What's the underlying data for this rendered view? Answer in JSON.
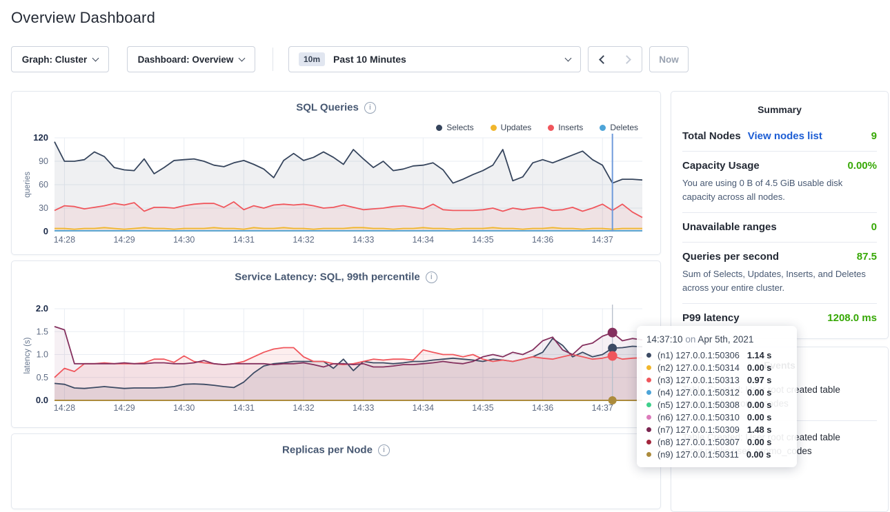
{
  "page": {
    "title": "Overview Dashboard"
  },
  "toolbar": {
    "graph_selector": "Graph: Cluster",
    "dashboard_selector": "Dashboard: Overview",
    "time_window_badge": "10m",
    "time_window_label": "Past 10 Minutes",
    "now_button": "Now"
  },
  "colors": {
    "accent_green": "#37a806",
    "link_blue": "#1c5dd4",
    "hover_line_blue": "#6f9bdb",
    "text_navy": "#242a35"
  },
  "summary": {
    "title": "Summary",
    "rows": [
      {
        "label": "Total Nodes",
        "link": "View nodes list",
        "value": "9"
      },
      {
        "label": "Capacity Usage",
        "value": "0.00%",
        "subtext": "You are using 0 B of 4.5 GiB usable disk capacity across all nodes."
      },
      {
        "label": "Unavailable ranges",
        "value": "0"
      },
      {
        "label": "Queries per second",
        "value": "87.5",
        "subtext": "Sum of Selects, Updates, Inserts, and Deletes across your entire cluster."
      },
      {
        "label": "P99 latency",
        "value": "1208.0 ms"
      }
    ]
  },
  "events": {
    "title": "Events",
    "items": [
      {
        "line1": "Table Created: User root created table",
        "line2": "movr.public.promo_codes"
      },
      {
        "line1": "Table Created: User root created table",
        "line2": "movr.public.user_promo_codes"
      }
    ]
  },
  "tooltip": {
    "time": "14:37:10",
    "on_word": "on",
    "date": "Apr 5th, 2021",
    "rows": [
      {
        "color": "#3c4a63",
        "label": "(n1) 127.0.0.1:50306",
        "value": "1.14 s"
      },
      {
        "color": "#f1b62c",
        "label": "(n2) 127.0.0.1:50314",
        "value": "0.00 s"
      },
      {
        "color": "#f0565c",
        "label": "(n3) 127.0.0.1:50313",
        "value": "0.97 s"
      },
      {
        "color": "#4da4d8",
        "label": "(n4) 127.0.0.1:50312",
        "value": "0.00 s"
      },
      {
        "color": "#3fd08c",
        "label": "(n5) 127.0.0.1:50308",
        "value": "0.00 s"
      },
      {
        "color": "#dc7bbb",
        "label": "(n6) 127.0.0.1:50310",
        "value": "0.00 s"
      },
      {
        "color": "#7a2550",
        "label": "(n7) 127.0.0.1:50309",
        "value": "1.48 s"
      },
      {
        "color": "#a3263c",
        "label": "(n8) 127.0.0.1:50307",
        "value": "0.00 s"
      },
      {
        "color": "#ac8b3c",
        "label": "(n9) 127.0.0.1:50311",
        "value": "0.00 s"
      }
    ]
  },
  "chart_data": [
    {
      "type": "area",
      "title": "SQL Queries",
      "ylabel": "queries",
      "ylim": [
        0,
        120
      ],
      "yticks": [
        "0",
        "30",
        "60",
        "90",
        "120"
      ],
      "xticks": [
        "14:28",
        "14:29",
        "14:30",
        "14:31",
        "14:32",
        "14:33",
        "14:34",
        "14:35",
        "14:36",
        "14:37"
      ],
      "xtick_start_index": 1,
      "xtick_step": 6,
      "grid": true,
      "legend_position": "top-right",
      "hover": {
        "index": 56,
        "line_color": "#6f9bdb",
        "line_width": 2,
        "dots": []
      },
      "series": [
        {
          "name": "Selects",
          "color": "#35445c",
          "fill": "rgba(57,70,92,0.08)",
          "values": [
            115,
            90,
            90,
            92,
            102,
            96,
            82,
            79,
            78,
            93,
            74,
            82,
            91,
            92,
            93,
            90,
            85,
            83,
            88,
            91,
            86,
            80,
            69,
            91,
            100,
            91,
            95,
            102,
            95,
            86,
            105,
            93,
            82,
            90,
            78,
            80,
            84,
            85,
            88,
            79,
            62,
            67,
            73,
            78,
            85,
            105,
            65,
            70,
            88,
            92,
            88,
            93,
            98,
            103,
            92,
            85,
            62,
            67,
            67,
            66
          ]
        },
        {
          "name": "Updates",
          "color": "#f1b62c",
          "fill": "rgba(241,182,44,0.14)",
          "values": [
            4,
            4,
            3,
            4,
            4,
            5,
            4,
            3,
            4,
            5,
            4,
            4,
            3,
            4,
            4,
            4,
            5,
            4,
            4,
            3,
            5,
            4,
            4,
            5,
            4,
            4,
            3,
            4,
            4,
            4,
            5,
            5,
            4,
            4,
            3,
            4,
            4,
            5,
            4,
            4,
            3,
            4,
            4,
            4,
            5,
            4,
            4,
            3,
            4,
            4,
            5,
            4,
            4,
            3,
            4,
            4,
            3,
            4,
            4,
            4
          ]
        },
        {
          "name": "Inserts",
          "color": "#f0565c",
          "fill": "rgba(240,86,92,0.09)",
          "values": [
            27,
            33,
            32,
            29,
            31,
            33,
            36,
            34,
            37,
            26,
            31,
            31,
            30,
            33,
            35,
            36,
            36,
            31,
            38,
            28,
            33,
            30,
            34,
            35,
            34,
            35,
            33,
            30,
            31,
            34,
            31,
            28,
            29,
            30,
            32,
            33,
            31,
            29,
            35,
            28,
            27,
            27,
            27,
            28,
            30,
            26,
            30,
            28,
            30,
            31,
            27,
            28,
            31,
            26,
            30,
            35,
            27,
            35,
            25,
            18
          ]
        },
        {
          "name": "Deletes",
          "color": "#4da4d8",
          "fill": "none",
          "values": [
            1,
            1,
            1,
            1,
            1,
            1,
            1,
            1,
            1,
            1,
            1,
            1,
            1,
            1,
            1,
            1,
            1,
            1,
            1,
            1,
            1,
            1,
            1,
            1,
            1,
            1,
            1,
            1,
            1,
            1,
            1,
            1,
            1,
            1,
            1,
            1,
            1,
            1,
            1,
            1,
            1,
            1,
            1,
            1,
            1,
            1,
            1,
            1,
            1,
            1,
            1,
            1,
            1,
            1,
            1,
            1,
            1,
            1,
            1,
            1
          ]
        }
      ]
    },
    {
      "type": "area",
      "title": "Service Latency: SQL, 99th percentile",
      "ylabel": "latency (s)",
      "ylim": [
        0,
        2
      ],
      "yticks": [
        "0.0",
        "0.5",
        "1.0",
        "1.5",
        "2.0"
      ],
      "xticks": [
        "14:28",
        "14:29",
        "14:30",
        "14:31",
        "14:32",
        "14:33",
        "14:34",
        "14:35",
        "14:36",
        "14:37"
      ],
      "xtick_start_index": 1,
      "xtick_step": 6,
      "grid": true,
      "legend_position": "none",
      "hover": {
        "index": 56,
        "line_color": "#b9c0cc",
        "line_width": 1.4,
        "dots": [
          {
            "color": "#84305e",
            "value": 1.48,
            "r": 7
          },
          {
            "color": "#3c4a63",
            "value": 1.14,
            "r": 6.5
          },
          {
            "color": "#f0565c",
            "value": 0.97,
            "r": 7
          },
          {
            "color": "#ac8b3c",
            "value": 0.0,
            "r": 6
          }
        ]
      },
      "series": [
        {
          "name": "(n1) 127.0.0.1:50306",
          "color": "#3c4a63",
          "fill": "rgba(60,74,99,0.10)",
          "values": [
            0.37,
            0.35,
            0.27,
            0.26,
            0.28,
            0.3,
            0.28,
            0.26,
            0.27,
            0.27,
            0.27,
            0.28,
            0.3,
            0.35,
            0.36,
            0.35,
            0.33,
            0.3,
            0.28,
            0.4,
            0.6,
            0.75,
            0.8,
            0.82,
            0.85,
            0.85,
            0.85,
            0.85,
            0.7,
            0.9,
            0.65,
            0.85,
            0.82,
            0.82,
            0.8,
            0.82,
            0.85,
            0.85,
            0.88,
            0.9,
            0.92,
            0.9,
            0.88,
            0.85,
            0.9,
            0.88,
            0.85,
            0.9,
            0.95,
            1.05,
            1.35,
            1.2,
            0.95,
            1.05,
            0.95,
            1.0,
            1.14,
            1.15,
            1.18,
            1.17
          ]
        },
        {
          "name": "(n3) 127.0.0.1:50313",
          "color": "#f0565c",
          "fill": "rgba(240,86,92,0.10)",
          "values": [
            0.5,
            0.7,
            0.63,
            0.8,
            0.8,
            0.82,
            0.8,
            0.8,
            0.8,
            0.82,
            0.9,
            0.9,
            0.83,
            0.97,
            0.85,
            0.82,
            0.8,
            0.78,
            0.8,
            0.85,
            0.95,
            1.05,
            1.12,
            1.15,
            1.15,
            0.95,
            0.85,
            0.85,
            0.8,
            0.78,
            0.8,
            0.85,
            0.9,
            0.88,
            0.9,
            0.9,
            0.88,
            1.1,
            1.05,
            1.0,
            1.0,
            0.95,
            1.0,
            0.9,
            0.85,
            0.88,
            0.85,
            0.9,
            0.95,
            0.92,
            0.9,
            0.95,
            1.0,
            0.95,
            0.9,
            0.92,
            0.97,
            0.9,
            0.92,
            0.93
          ]
        },
        {
          "name": "(n7) 127.0.0.1:50309",
          "color": "#84305e",
          "fill": "rgba(132,48,94,0.07)",
          "values": [
            1.61,
            1.54,
            0.8,
            0.8,
            0.8,
            0.8,
            0.8,
            0.82,
            0.8,
            0.8,
            0.82,
            0.82,
            0.8,
            0.8,
            0.82,
            0.87,
            0.8,
            0.78,
            0.8,
            0.8,
            0.8,
            0.8,
            0.78,
            0.8,
            0.8,
            0.82,
            0.78,
            0.73,
            0.8,
            0.8,
            0.78,
            0.8,
            0.73,
            0.73,
            0.75,
            0.78,
            0.78,
            0.8,
            0.82,
            0.85,
            0.82,
            0.8,
            0.85,
            0.95,
            1.0,
            0.95,
            1.05,
            1.0,
            1.1,
            1.3,
            1.38,
            1.1,
            1.0,
            1.2,
            1.25,
            1.4,
            1.48,
            1.3,
            1.35,
            1.32
          ]
        },
        {
          "name": "(n9) 127.0.0.1:50311",
          "color": "#ac8b3c",
          "fill": "none",
          "width": 2,
          "values": [
            0,
            0,
            0,
            0,
            0,
            0,
            0,
            0,
            0,
            0,
            0,
            0,
            0,
            0,
            0,
            0,
            0,
            0,
            0,
            0,
            0,
            0,
            0,
            0,
            0,
            0,
            0,
            0,
            0,
            0,
            0,
            0,
            0,
            0,
            0,
            0,
            0,
            0,
            0,
            0,
            0,
            0,
            0,
            0,
            0,
            0,
            0,
            0,
            0,
            0,
            0,
            0,
            0,
            0,
            0,
            0,
            0,
            0,
            0,
            0
          ]
        }
      ]
    },
    {
      "type": "area",
      "title": "Replicas per Node",
      "series": []
    }
  ]
}
